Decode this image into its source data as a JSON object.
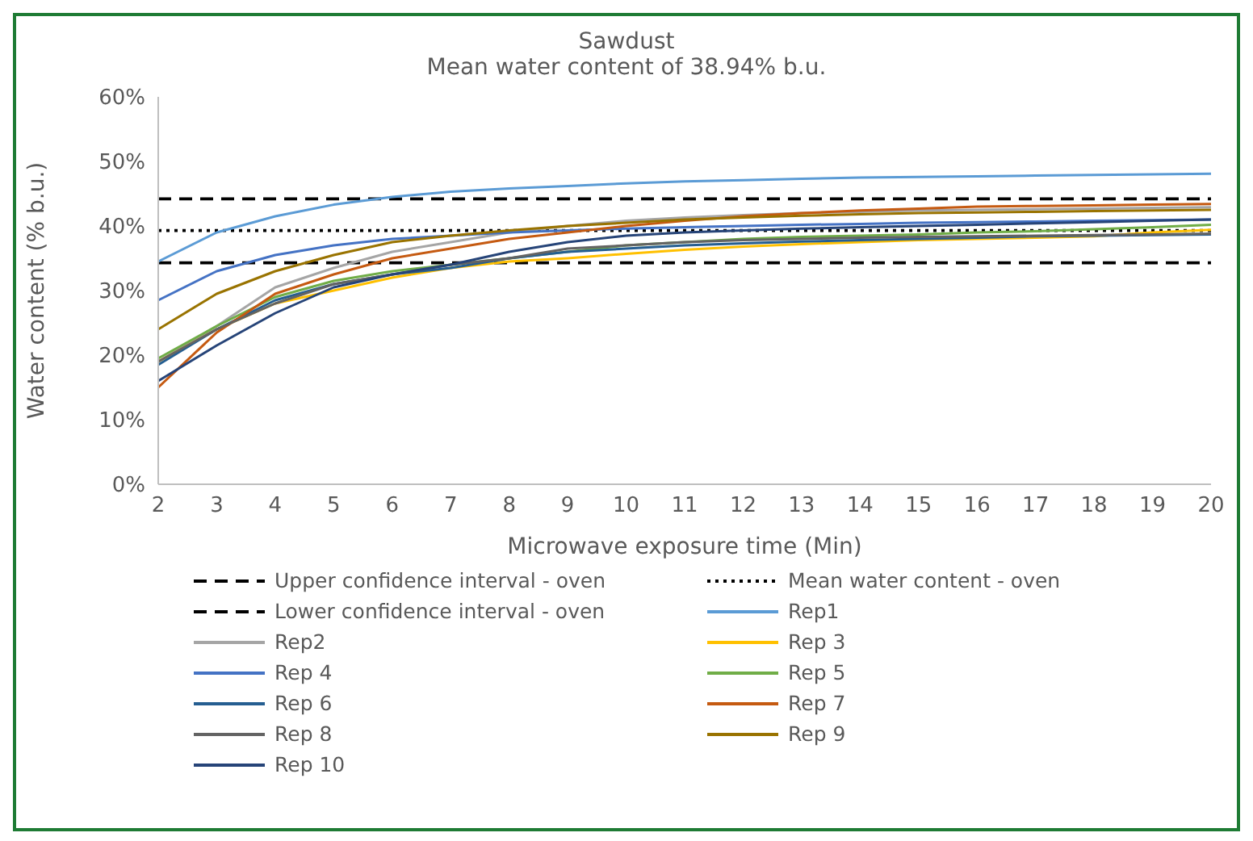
{
  "chart_data": {
    "type": "line",
    "title": "Sawdust",
    "subtitle": "Mean water content of 38.94% b.u.",
    "xlabel": "Microwave exposure time (Min)",
    "ylabel": "Water content (% b.u.)",
    "categories": [
      "2",
      "3",
      "4",
      "5",
      "6",
      "7",
      "8",
      "9",
      "10",
      "11",
      "12",
      "13",
      "14",
      "15",
      "16",
      "17",
      "18",
      "19",
      "20"
    ],
    "ylim": [
      0,
      60
    ],
    "yticks": [
      {
        "value": 0,
        "label": "0%"
      },
      {
        "value": 10,
        "label": "10%"
      },
      {
        "value": 20,
        "label": "20%"
      },
      {
        "value": 30,
        "label": "30%"
      },
      {
        "value": 40,
        "label": "40%"
      },
      {
        "value": 50,
        "label": "50%"
      },
      {
        "value": 60,
        "label": "60%"
      }
    ],
    "grid": false,
    "legend": "bottom",
    "marker": "none",
    "series": [
      {
        "name": "Upper confidence interval - oven",
        "color": "#000000",
        "line_style": "dashed",
        "values": [
          44.2,
          44.2,
          44.2,
          44.2,
          44.2,
          44.2,
          44.2,
          44.2,
          44.2,
          44.2,
          44.2,
          44.2,
          44.2,
          44.2,
          44.2,
          44.2,
          44.2,
          44.2,
          44.2
        ]
      },
      {
        "name": "Mean water content - oven",
        "color": "#000000",
        "line_style": "dotted",
        "values": [
          39.3,
          39.3,
          39.3,
          39.3,
          39.3,
          39.3,
          39.3,
          39.3,
          39.3,
          39.3,
          39.3,
          39.3,
          39.3,
          39.3,
          39.3,
          39.3,
          39.3,
          39.3,
          39.3
        ]
      },
      {
        "name": "Lower confidence interval - oven",
        "color": "#000000",
        "line_style": "dashed",
        "values": [
          34.3,
          34.3,
          34.3,
          34.3,
          34.3,
          34.3,
          34.3,
          34.3,
          34.3,
          34.3,
          34.3,
          34.3,
          34.3,
          34.3,
          34.3,
          34.3,
          34.3,
          34.3,
          34.3
        ]
      },
      {
        "name": "Rep1",
        "color": "#5b9bd5",
        "values": [
          34.5,
          39,
          41.5,
          43.3,
          44.5,
          45.3,
          45.8,
          46.2,
          46.6,
          46.9,
          47.1,
          47.3,
          47.5,
          47.6,
          47.7,
          47.8,
          47.9,
          48,
          48.1
        ]
      },
      {
        "name": "Rep2",
        "color": "#a5a5a5",
        "values": [
          19,
          24.5,
          30.5,
          33.5,
          36,
          37.5,
          39,
          40,
          40.8,
          41.3,
          41.7,
          42,
          42.2,
          42.4,
          42.5,
          42.6,
          42.7,
          42.8,
          42.9
        ]
      },
      {
        "name": "Rep 3",
        "color": "#ffc000",
        "values": [
          19,
          24,
          28,
          30,
          32,
          33.5,
          34.5,
          35,
          35.7,
          36.3,
          36.8,
          37.2,
          37.5,
          37.8,
          38,
          38.2,
          38.4,
          39,
          39.4
        ]
      },
      {
        "name": "Rep 4",
        "color": "#4472c4",
        "values": [
          28.5,
          33,
          35.5,
          37,
          38,
          38.5,
          39,
          39.3,
          39.6,
          39.8,
          40,
          40.2,
          40.3,
          40.5,
          40.6,
          40.7,
          40.8,
          40.9,
          41
        ]
      },
      {
        "name": "Rep 5",
        "color": "#70ad47",
        "values": [
          19.5,
          24.5,
          29,
          31.5,
          33,
          34,
          35,
          36,
          37,
          37.5,
          38,
          38.3,
          38.5,
          38.7,
          39,
          39.2,
          39.5,
          39.8,
          40.2
        ]
      },
      {
        "name": "Rep 6",
        "color": "#255e91",
        "values": [
          18.5,
          24,
          28.5,
          31,
          32.5,
          33.5,
          35,
          36,
          36.5,
          37,
          37.3,
          37.6,
          37.8,
          38,
          38.2,
          38.4,
          38.5,
          38.6,
          38.7
        ]
      },
      {
        "name": "Rep 7",
        "color": "#c55a11",
        "values": [
          15,
          23.5,
          29.5,
          32.5,
          35,
          36.5,
          38,
          39,
          40,
          40.8,
          41.5,
          42,
          42.4,
          42.7,
          43,
          43.1,
          43.2,
          43.3,
          43.4
        ]
      },
      {
        "name": "Rep 8",
        "color": "#636363",
        "values": [
          19,
          24,
          28,
          31,
          32.5,
          34,
          35,
          36.5,
          37,
          37.5,
          37.8,
          38,
          38.2,
          38.3,
          38.4,
          38.5,
          38.6,
          38.7,
          38.8
        ]
      },
      {
        "name": "Rep 9",
        "color": "#997300",
        "values": [
          24,
          29.5,
          33,
          35.5,
          37.5,
          38.5,
          39.3,
          40,
          40.5,
          41,
          41.3,
          41.6,
          41.8,
          42,
          42.1,
          42.2,
          42.3,
          42.4,
          42.5
        ]
      },
      {
        "name": "Rep 10",
        "color": "#264478",
        "values": [
          16,
          21.5,
          26.5,
          30.5,
          32.5,
          34,
          36,
          37.5,
          38.5,
          39,
          39.3,
          39.6,
          39.8,
          40,
          40.2,
          40.4,
          40.6,
          40.8,
          41
        ]
      }
    ]
  }
}
